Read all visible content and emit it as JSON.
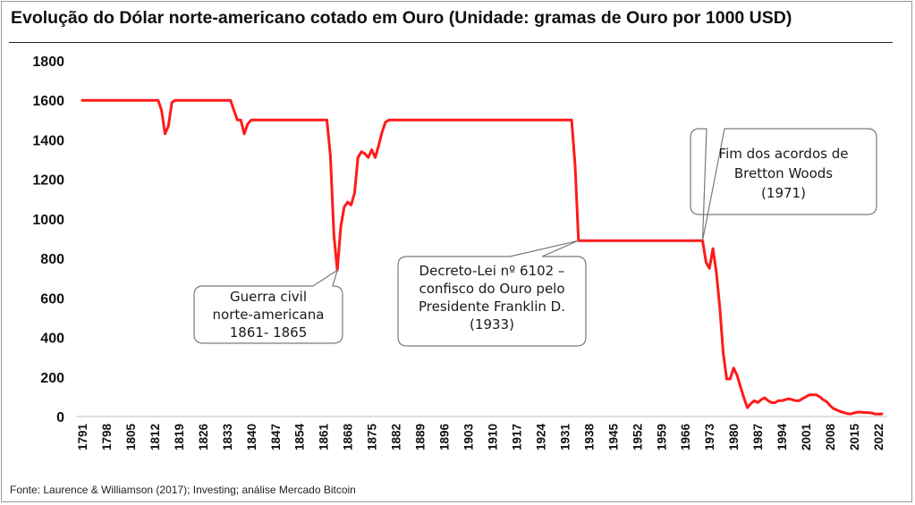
{
  "title": "Evolução do Dólar norte-americano cotado em Ouro (Unidade: gramas de Ouro por 1000 USD)",
  "source": "Fonte: Laurence & Williamson (2017); Investing; análise Mercado Bitcoin",
  "colors": {
    "line": "#ff1a1a",
    "axis": "#bfbfbf",
    "callout_border": "#7a7a7a",
    "callout_fill": "#ffffff"
  },
  "chart_data": {
    "type": "line",
    "title": "Evolução do Dólar norte-americano cotado em Ouro (Unidade: gramas de Ouro por 1000 USD)",
    "xlabel": "",
    "ylabel": "",
    "ylim": [
      0,
      1800
    ],
    "xlim": [
      1791,
      2022
    ],
    "yticks": [
      0,
      200,
      400,
      600,
      800,
      1000,
      1200,
      1400,
      1600,
      1800
    ],
    "xticks": [
      1791,
      1798,
      1805,
      1812,
      1819,
      1826,
      1833,
      1840,
      1847,
      1854,
      1861,
      1868,
      1875,
      1882,
      1889,
      1896,
      1903,
      1910,
      1917,
      1924,
      1931,
      1938,
      1945,
      1952,
      1959,
      1966,
      1973,
      1980,
      1987,
      1994,
      2001,
      2008,
      2015,
      2022
    ],
    "grid": false,
    "legend": "none",
    "series": [
      {
        "points": [
          [
            1791,
            1600
          ],
          [
            1813,
            1600
          ],
          [
            1814,
            1550
          ],
          [
            1815,
            1430
          ],
          [
            1816,
            1470
          ],
          [
            1817,
            1590
          ],
          [
            1818,
            1600
          ],
          [
            1834,
            1600
          ],
          [
            1835,
            1550
          ],
          [
            1836,
            1500
          ],
          [
            1837,
            1500
          ],
          [
            1838,
            1430
          ],
          [
            1839,
            1480
          ],
          [
            1840,
            1500
          ],
          [
            1862,
            1500
          ],
          [
            1863,
            1320
          ],
          [
            1864,
            920
          ],
          [
            1865,
            740
          ],
          [
            1866,
            960
          ],
          [
            1867,
            1060
          ],
          [
            1868,
            1085
          ],
          [
            1869,
            1070
          ],
          [
            1870,
            1130
          ],
          [
            1871,
            1310
          ],
          [
            1872,
            1340
          ],
          [
            1873,
            1330
          ],
          [
            1874,
            1310
          ],
          [
            1875,
            1350
          ],
          [
            1876,
            1310
          ],
          [
            1877,
            1370
          ],
          [
            1878,
            1440
          ],
          [
            1879,
            1490
          ],
          [
            1880,
            1500
          ],
          [
            1933,
            1500
          ],
          [
            1934,
            1270
          ],
          [
            1935,
            890
          ],
          [
            1971,
            890
          ],
          [
            1972,
            780
          ],
          [
            1973,
            750
          ],
          [
            1974,
            850
          ],
          [
            1975,
            730
          ],
          [
            1976,
            550
          ],
          [
            1977,
            320
          ],
          [
            1978,
            190
          ],
          [
            1979,
            190
          ],
          [
            1980,
            245
          ],
          [
            1981,
            210
          ],
          [
            1982,
            150
          ],
          [
            1983,
            95
          ],
          [
            1984,
            45
          ],
          [
            1985,
            65
          ],
          [
            1986,
            80
          ],
          [
            1987,
            70
          ],
          [
            1988,
            85
          ],
          [
            1989,
            95
          ],
          [
            1990,
            80
          ],
          [
            1991,
            70
          ],
          [
            1992,
            70
          ],
          [
            1993,
            80
          ],
          [
            1994,
            80
          ],
          [
            1995,
            85
          ],
          [
            1996,
            90
          ],
          [
            1997,
            85
          ],
          [
            1998,
            80
          ],
          [
            1999,
            80
          ],
          [
            2000,
            90
          ],
          [
            2001,
            100
          ],
          [
            2002,
            110
          ],
          [
            2003,
            110
          ],
          [
            2004,
            110
          ],
          [
            2005,
            100
          ],
          [
            2006,
            85
          ],
          [
            2007,
            75
          ],
          [
            2008,
            55
          ],
          [
            2009,
            40
          ],
          [
            2010,
            33
          ],
          [
            2011,
            25
          ],
          [
            2012,
            20
          ],
          [
            2013,
            15
          ],
          [
            2014,
            13
          ],
          [
            2015,
            18
          ],
          [
            2016,
            22
          ],
          [
            2017,
            22
          ],
          [
            2018,
            20
          ],
          [
            2019,
            20
          ],
          [
            2020,
            18
          ],
          [
            2021,
            13
          ],
          [
            2022,
            12
          ],
          [
            2023,
            13
          ]
        ]
      }
    ],
    "annotations": [
      {
        "id": "civil-war",
        "lines": [
          "Guerra civil",
          "norte-americana",
          "1861- 1865"
        ],
        "x": 1865,
        "y": 740
      },
      {
        "id": "decree",
        "lines": [
          "Decreto-Lei nº 6102 –",
          "confisco do Ouro pelo",
          "Presidente Franklin D.",
          "(1933)"
        ],
        "x": 1935,
        "y": 890
      },
      {
        "id": "bretton",
        "lines": [
          "Fim dos acordos de",
          "Bretton Woods",
          "(1971)"
        ],
        "x": 1971,
        "y": 890
      }
    ]
  }
}
